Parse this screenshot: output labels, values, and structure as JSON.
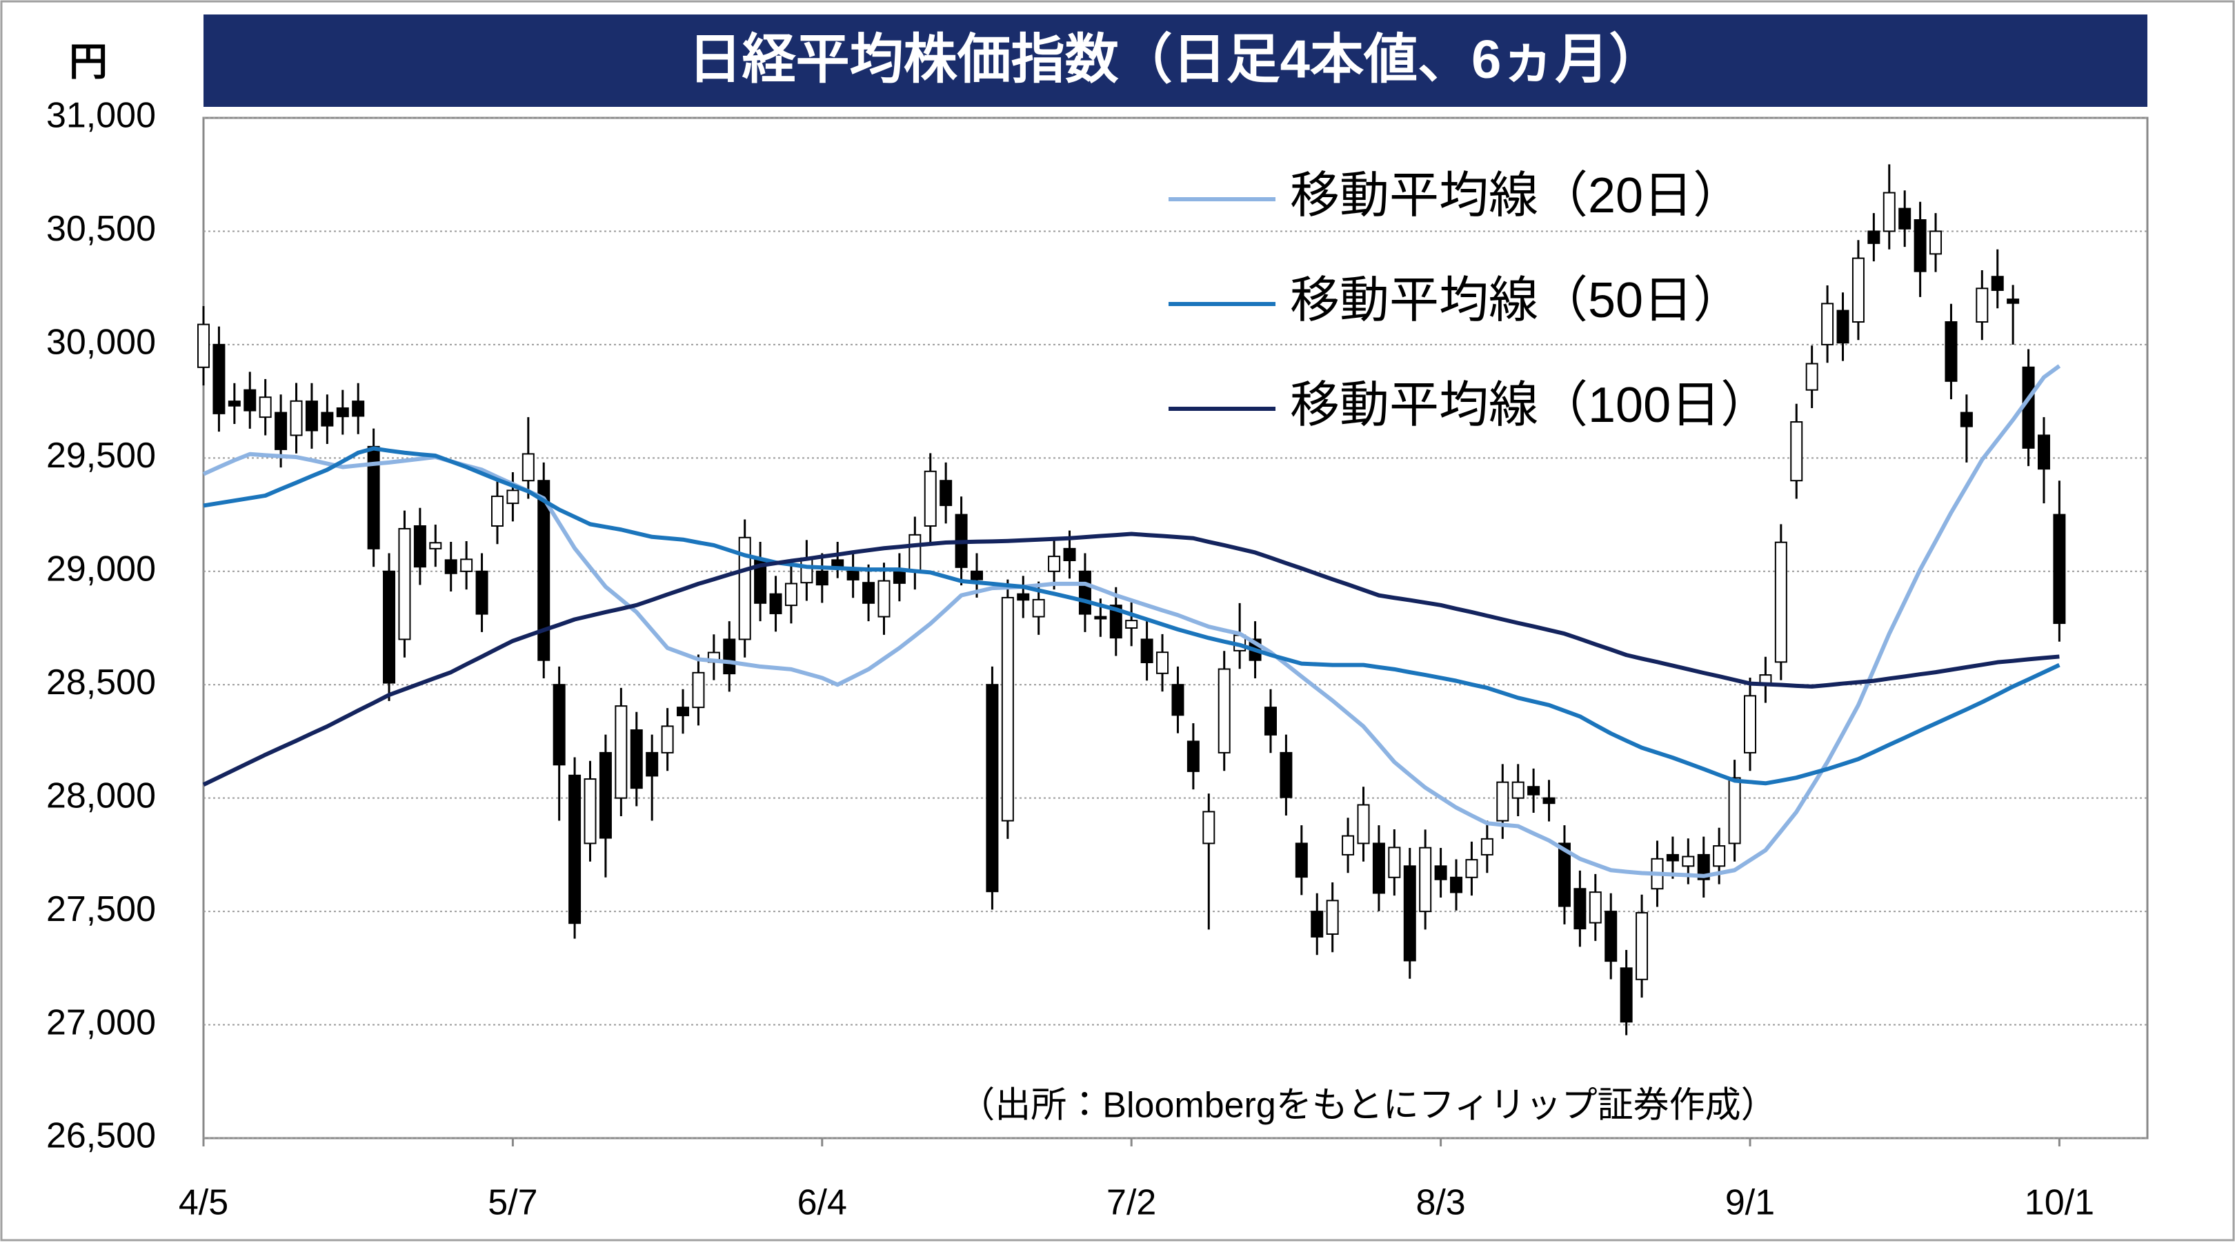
{
  "chart_data": {
    "type": "candlestick",
    "title": "日経平均株価指数（日足4本値、6ヵ月）",
    "y_unit_label": "円",
    "source_note": "（出所：Bloombergをもとにフィリップ証券作成）",
    "categories": [
      "4/5",
      null,
      null,
      null,
      null,
      null,
      null,
      null,
      null,
      null,
      null,
      null,
      null,
      null,
      null,
      null,
      null,
      null,
      null,
      null,
      "5/7",
      null,
      null,
      null,
      null,
      null,
      null,
      null,
      null,
      null,
      null,
      null,
      null,
      null,
      null,
      null,
      null,
      null,
      null,
      null,
      "6/4",
      null,
      null,
      null,
      null,
      null,
      null,
      null,
      null,
      null,
      null,
      null,
      null,
      null,
      null,
      null,
      null,
      null,
      null,
      null,
      "7/2",
      null,
      null,
      null,
      null,
      null,
      null,
      null,
      null,
      null,
      null,
      null,
      null,
      null,
      null,
      null,
      null,
      null,
      null,
      null,
      "8/3",
      null,
      null,
      null,
      null,
      null,
      null,
      null,
      null,
      null,
      null,
      null,
      null,
      null,
      null,
      null,
      null,
      null,
      null,
      null,
      "9/1",
      null,
      null,
      null,
      null,
      null,
      null,
      null,
      null,
      null,
      null,
      null,
      null,
      null,
      null,
      null,
      null,
      null,
      null,
      null,
      "10/1"
    ],
    "ohlc": {
      "up_color": "#ffffff",
      "down_color": "#000000",
      "edge_color": "#000000",
      "open": [
        29900,
        30000,
        29750,
        29800,
        29680,
        29700,
        29600,
        29750,
        29700,
        29720,
        29750,
        29550,
        29000,
        28700,
        29200,
        29100,
        29050,
        29000,
        29000,
        29200,
        29300,
        29400,
        29400,
        28500,
        28100,
        27800,
        28200,
        28000,
        28300,
        28200,
        28200,
        28400,
        28400,
        28600,
        28700,
        28700,
        29050,
        28900,
        28850,
        28950,
        29000,
        29050,
        29000,
        28950,
        28800,
        29000,
        29000,
        29200,
        29400,
        29250,
        29000,
        28500,
        27900,
        28900,
        28800,
        29000,
        29100,
        29000,
        28800,
        28850,
        28750,
        28700,
        28550,
        28500,
        28250,
        27800,
        28200,
        28650,
        28700,
        28400,
        28200,
        27800,
        27500,
        27400,
        27750,
        27800,
        27800,
        27650,
        27700,
        27500,
        27700,
        27650,
        27650,
        27750,
        27900,
        28000,
        28050,
        28000,
        27800,
        27600,
        27450,
        27500,
        27250,
        27200,
        27600,
        27750,
        27700,
        27750,
        27700,
        27800,
        28200,
        28500,
        28600,
        29400,
        29800,
        30000,
        30150,
        30100,
        30500,
        30500,
        30600,
        30550,
        30400,
        30100,
        29700,
        30100,
        30300,
        30200,
        29900,
        29600,
        29250
      ],
      "high": [
        30170,
        30080,
        29830,
        29880,
        29848,
        29780,
        29831,
        29830,
        29780,
        29800,
        29830,
        29630,
        29080,
        29268,
        29280,
        29206,
        29130,
        29133,
        29080,
        29411,
        29437,
        29680,
        29480,
        28580,
        28180,
        28164,
        28280,
        28486,
        28380,
        28280,
        28397,
        28480,
        28633,
        28722,
        28780,
        29229,
        29130,
        28980,
        29026,
        29138,
        29080,
        29130,
        29080,
        29030,
        29038,
        29080,
        29241,
        29521,
        29480,
        29330,
        29080,
        28580,
        28964,
        28980,
        28955,
        29146,
        29180,
        29080,
        28880,
        28930,
        28863,
        28780,
        28723,
        28580,
        28330,
        28020,
        28649,
        28860,
        28780,
        28480,
        28280,
        27880,
        27580,
        27628,
        27913,
        28050,
        27880,
        27862,
        27780,
        27861,
        27780,
        27730,
        27808,
        27900,
        28150,
        28150,
        28130,
        28080,
        27880,
        27680,
        27665,
        27580,
        27330,
        27574,
        27812,
        27830,
        27822,
        27830,
        27869,
        28169,
        28531,
        28623,
        29208,
        29739,
        29996,
        30261,
        30230,
        30461,
        30580,
        30795,
        30680,
        30630,
        30580,
        30180,
        29780,
        30328,
        30420,
        30263,
        29980,
        29680,
        29400
      ],
      "low": [
        29820,
        29616,
        29650,
        29629,
        29600,
        29458,
        29520,
        29541,
        29562,
        29603,
        29605,
        29020,
        28428,
        28620,
        28940,
        29020,
        28911,
        28920,
        28732,
        29120,
        29220,
        29320,
        28528,
        27900,
        27380,
        27720,
        27650,
        27920,
        27964,
        27900,
        28120,
        28284,
        28320,
        28520,
        28469,
        28620,
        28780,
        28734,
        28770,
        28870,
        28861,
        28970,
        28883,
        28780,
        28720,
        28868,
        28920,
        29120,
        29211,
        28938,
        28884,
        27508,
        27820,
        28794,
        28720,
        28920,
        28968,
        28732,
        28711,
        28627,
        28670,
        28518,
        28470,
        28286,
        28038,
        27420,
        28120,
        28570,
        28528,
        28199,
        27923,
        27572,
        27308,
        27320,
        27670,
        27720,
        27501,
        27570,
        27203,
        27420,
        27561,
        27504,
        27570,
        27670,
        27820,
        27920,
        27935,
        27897,
        27443,
        27344,
        27370,
        27201,
        26954,
        27120,
        27520,
        27644,
        27620,
        27561,
        27620,
        27720,
        28120,
        28420,
        28520,
        29320,
        29720,
        29920,
        29928,
        30020,
        30367,
        30420,
        30431,
        30210,
        30320,
        29759,
        29480,
        30020,
        30160,
        30000,
        29464,
        29300,
        28690
      ],
      "close": [
        30089,
        29696,
        29730,
        29709,
        29768,
        29538,
        29751,
        29621,
        29642,
        29683,
        29685,
        29100,
        28508,
        29188,
        29020,
        29126,
        28991,
        29053,
        28812,
        29331,
        29357,
        29518,
        28608,
        28147,
        27448,
        28084,
        27824,
        28406,
        28044,
        28098,
        28317,
        28364,
        28553,
        28642,
        28549,
        29149,
        28860,
        28814,
        28946,
        29058,
        28941,
        29019,
        28963,
        28860,
        28958,
        28948,
        29161,
        29441,
        29291,
        29018,
        28964,
        27588,
        28884,
        28874,
        28875,
        29066,
        29048,
        28812,
        28791,
        28707,
        28783,
        28598,
        28643,
        28366,
        28118,
        27940,
        28569,
        28718,
        28608,
        28279,
        28003,
        27652,
        27388,
        27548,
        27833,
        27970,
        27581,
        27782,
        27283,
        27781,
        27641,
        27584,
        27728,
        27820,
        28070,
        28070,
        28015,
        27977,
        27523,
        27424,
        27585,
        27281,
        27013,
        27494,
        27732,
        27724,
        27742,
        27641,
        27789,
        28089,
        28451,
        28543,
        29128,
        29659,
        29916,
        30181,
        30008,
        30381,
        30447,
        30670,
        30511,
        30323,
        30500,
        29839,
        29639,
        30248,
        30240,
        30183,
        29544,
        29452,
        28771
      ]
    },
    "series": [
      {
        "name": "移動平均線（20日）",
        "color": "#8db3e2",
        "values": [
          29429,
          29460,
          29490,
          29517,
          29512,
          29508,
          29504,
          29490,
          29475,
          29460,
          29467,
          29474,
          29480,
          29488,
          29496,
          29504,
          29485,
          29466,
          29448,
          29416,
          29385,
          29354,
          29322,
          29212,
          29102,
          29017,
          28932,
          28876,
          28820,
          28741,
          28662,
          28637,
          28612,
          28606,
          28600,
          28590,
          28580,
          28574,
          28568,
          28549,
          28530,
          28500,
          28534,
          28568,
          28615,
          28662,
          28715,
          28769,
          28831,
          28894,
          28910,
          28926,
          28929,
          28932,
          28938,
          28945,
          28945,
          28945,
          28920,
          28894,
          28872,
          28850,
          28828,
          28807,
          28781,
          28756,
          28740,
          28725,
          28684,
          28643,
          28590,
          28536,
          28483,
          28430,
          28373,
          28316,
          28238,
          28159,
          28102,
          28046,
          28002,
          27958,
          27923,
          27889,
          27882,
          27876,
          27844,
          27813,
          27772,
          27732,
          27707,
          27682,
          27675,
          27669,
          27666,
          27663,
          27660,
          27656,
          27669,
          27682,
          27726,
          27770,
          27854,
          27939,
          28049,
          28159,
          28284,
          28410,
          28567,
          28725,
          28866,
          29008,
          29133,
          29259,
          29375,
          29492,
          29580,
          29668,
          29762,
          29856,
          29906
        ]
      },
      {
        "name": "移動平均線（50日）",
        "color": "#1b75bc",
        "values": [
          29290,
          29301,
          29312,
          29323,
          29334,
          29363,
          29391,
          29420,
          29448,
          29485,
          29523,
          29542,
          29532,
          29523,
          29516,
          29510,
          29485,
          29460,
          29432,
          29404,
          29378,
          29353,
          29312,
          29272,
          29240,
          29208,
          29196,
          29184,
          29168,
          29152,
          29146,
          29140,
          29127,
          29115,
          29093,
          29071,
          29055,
          29039,
          29030,
          29020,
          29017,
          29014,
          29011,
          29008,
          29008,
          29008,
          29001,
          28995,
          28976,
          28957,
          28951,
          28945,
          28938,
          28932,
          28916,
          28901,
          28885,
          28869,
          28850,
          28832,
          28810,
          28788,
          28766,
          28744,
          28725,
          28706,
          28690,
          28675,
          28653,
          28631,
          28612,
          28593,
          28590,
          28587,
          28587,
          28587,
          28577,
          28568,
          28555,
          28543,
          28530,
          28517,
          28501,
          28486,
          28464,
          28442,
          28426,
          28410,
          28385,
          28360,
          28322,
          28285,
          28253,
          28222,
          28200,
          28178,
          28153,
          28128,
          28102,
          28077,
          28071,
          28065,
          28077,
          28090,
          28109,
          28128,
          28150,
          28172,
          28203,
          28235,
          28266,
          28298,
          28329,
          28360,
          28391,
          28423,
          28457,
          28492,
          28523,
          28555,
          28587
        ]
      },
      {
        "name": "移動平均線（100日）",
        "color": "#14245e",
        "values": [
          28059,
          28092,
          28125,
          28158,
          28191,
          28222,
          28253,
          28285,
          28316,
          28351,
          28386,
          28420,
          28455,
          28480,
          28505,
          28530,
          28555,
          28590,
          28624,
          28659,
          28693,
          28717,
          28741,
          28764,
          28788,
          28804,
          28820,
          28835,
          28851,
          28874,
          28898,
          28921,
          28945,
          28965,
          28986,
          29006,
          29026,
          29036,
          29046,
          29055,
          29065,
          29074,
          29084,
          29093,
          29102,
          29108,
          29115,
          29121,
          29127,
          29129,
          29131,
          29132,
          29134,
          29137,
          29140,
          29143,
          29146,
          29151,
          29156,
          29160,
          29165,
          29160,
          29156,
          29151,
          29146,
          29130,
          29115,
          29099,
          29083,
          29060,
          29036,
          29013,
          28989,
          28965,
          28942,
          28918,
          28894,
          28883,
          28873,
          28862,
          28851,
          28835,
          28820,
          28804,
          28788,
          28772,
          28757,
          28741,
          28725,
          28702,
          28678,
          28655,
          28631,
          28615,
          28600,
          28584,
          28568,
          28552,
          28537,
          28521,
          28505,
          28502,
          28499,
          28495,
          28492,
          28498,
          28505,
          28511,
          28517,
          28527,
          28536,
          28546,
          28555,
          28566,
          28577,
          28588,
          28599,
          28605,
          28612,
          28618,
          28624
        ]
      }
    ],
    "ylim": [
      26500,
      31000
    ],
    "yticks": [
      {
        "value": 26500,
        "label": "26,500"
      },
      {
        "value": 27000,
        "label": "27,000"
      },
      {
        "value": 27500,
        "label": "27,500"
      },
      {
        "value": 28000,
        "label": "28,000"
      },
      {
        "value": 28500,
        "label": "28,500"
      },
      {
        "value": 29000,
        "label": "29,000"
      },
      {
        "value": 29500,
        "label": "29,500"
      },
      {
        "value": 30000,
        "label": "30,000"
      },
      {
        "value": 30500,
        "label": "30,500"
      },
      {
        "value": 31000,
        "label": "31,000"
      }
    ],
    "grid": true,
    "legend": "upper right"
  }
}
